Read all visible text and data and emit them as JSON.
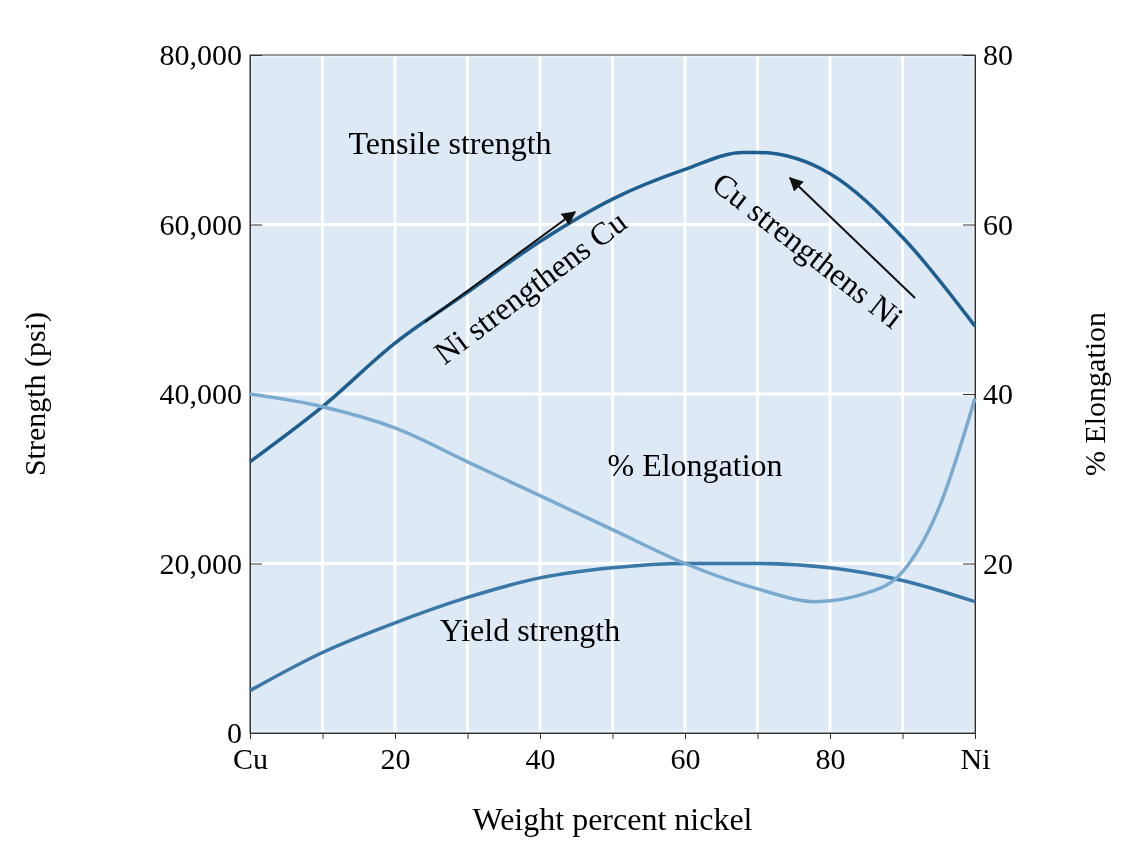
{
  "chart_data": {
    "type": "line",
    "xlabel": "Weight percent nickel",
    "ylabel": "Strength (psi)",
    "y2label": "% Elongation",
    "xlim": [
      0,
      100
    ],
    "xticks": [
      {
        "value": 0,
        "label": "Cu"
      },
      {
        "value": 10,
        "label": null
      },
      20,
      {
        "value": 30,
        "label": null
      },
      40,
      {
        "value": 50,
        "label": null
      },
      60,
      {
        "value": 70,
        "label": null
      },
      80,
      {
        "value": 90,
        "label": null
      },
      {
        "value": 100,
        "label": "Ni"
      }
    ],
    "ylim": [
      0,
      80000
    ],
    "yticks": [
      0,
      {
        "value": 20000,
        "label": "20,000"
      },
      {
        "value": 40000,
        "label": "40,000"
      },
      {
        "value": 60000,
        "label": "60,000"
      },
      {
        "value": 80000,
        "label": "80,000"
      }
    ],
    "y2lim": [
      0,
      80
    ],
    "y2ticks": [
      20,
      40,
      60,
      80
    ],
    "grid": true,
    "marker": "none",
    "line_style": "solid",
    "series": [
      {
        "color": "#1f5f8f",
        "x": [
          0,
          10,
          20,
          30,
          40,
          50,
          60,
          68,
          70,
          80,
          90,
          100
        ],
        "values": [
          32000,
          38500,
          46000,
          52000,
          58000,
          63000,
          66500,
          68500,
          68500,
          66000,
          58500,
          48000
        ]
      },
      {
        "color": "#3a78a8",
        "x": [
          0,
          10,
          20,
          30,
          40,
          50,
          60,
          70,
          80,
          90,
          100
        ],
        "values": [
          5000,
          9500,
          13000,
          16000,
          18300,
          19500,
          20000,
          20000,
          19500,
          18000,
          15500
        ]
      },
      {
        "color": "#7aaad0",
        "axis": "y2",
        "x": [
          0,
          10,
          20,
          30,
          40,
          50,
          60,
          70,
          78,
          85,
          90,
          95,
          100
        ],
        "values": [
          40,
          38.5,
          36,
          32,
          28,
          24,
          20,
          17,
          15.5,
          16.5,
          19,
          26.5,
          39.5
        ]
      }
    ],
    "annotations": [
      "Tensile strength",
      "% Elongation",
      "Yield strength",
      "Ni strengthens Cu",
      "Cu strengthens Ni"
    ]
  }
}
